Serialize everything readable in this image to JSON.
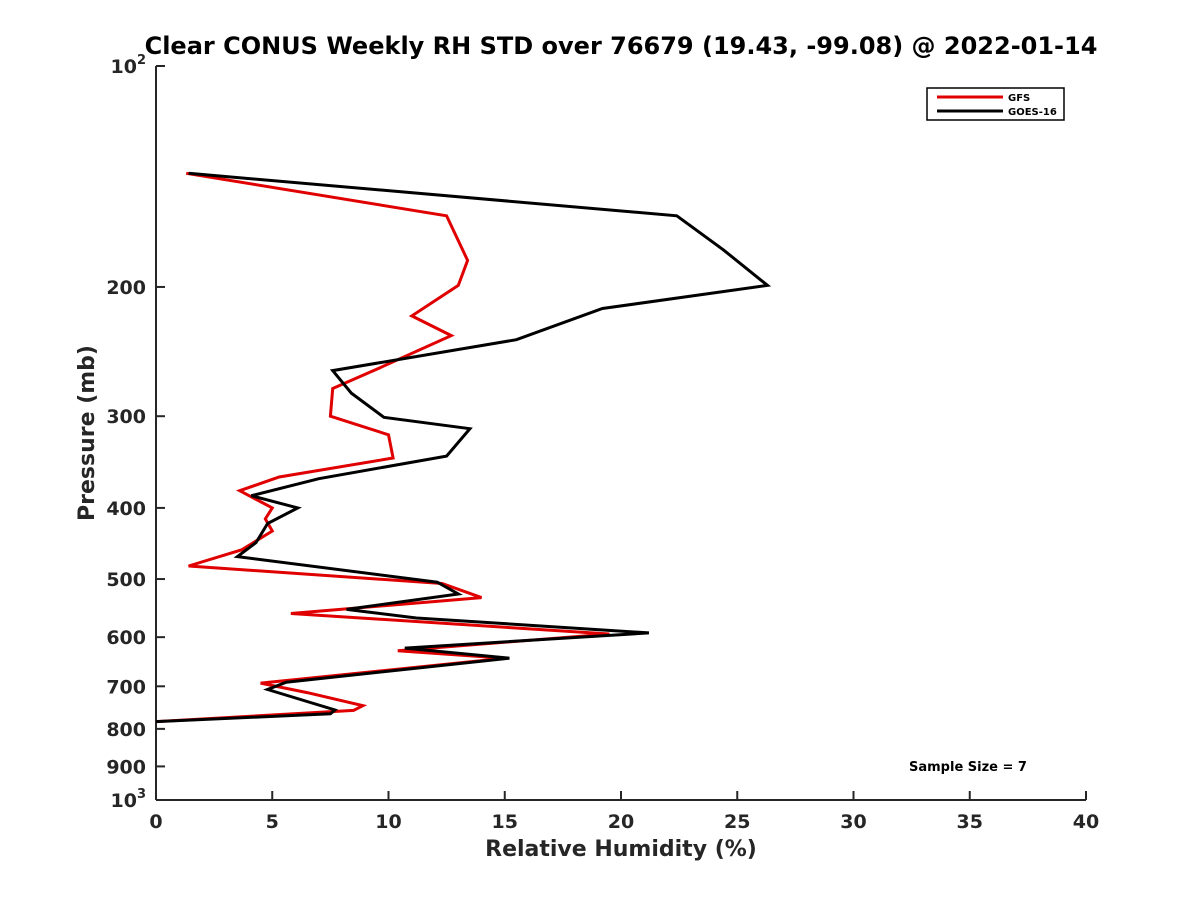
{
  "chart_data": {
    "type": "line",
    "title": "Clear CONUS Weekly RH STD over 76679 (19.43, -99.08) @ 2022-01-14",
    "xlabel": "Relative Humidity (%)",
    "ylabel": "Pressure (mb)",
    "xlim": [
      0,
      40
    ],
    "ylim": [
      100,
      1000
    ],
    "yscale": "log",
    "y_reversed": true,
    "grid": false,
    "legend_position": "top-right",
    "x_ticks": [
      "0",
      "5",
      "10",
      "15",
      "20",
      "25",
      "30",
      "35",
      "40"
    ],
    "y_ticks": [
      {
        "value": 100,
        "base": "10",
        "exp": "2"
      },
      {
        "value": 200,
        "label": "200"
      },
      {
        "value": 300,
        "label": "300"
      },
      {
        "value": 400,
        "label": "400"
      },
      {
        "value": 500,
        "label": "500"
      },
      {
        "value": 600,
        "label": "600"
      },
      {
        "value": 700,
        "label": "700"
      },
      {
        "value": 800,
        "label": "800"
      },
      {
        "value": 900,
        "label": "900"
      },
      {
        "value": 1000,
        "base": "10",
        "exp": "3"
      }
    ],
    "annotation": "Sample Size = 7",
    "series": [
      {
        "name": "GFS",
        "color": "#e00000",
        "points": [
          [
            1.3,
            140
          ],
          [
            12.5,
            160
          ],
          [
            13.4,
            184
          ],
          [
            13.0,
            199
          ],
          [
            11.0,
            219
          ],
          [
            12.7,
            233
          ],
          [
            9.6,
            258
          ],
          [
            7.6,
            275
          ],
          [
            7.5,
            300
          ],
          [
            10.0,
            318
          ],
          [
            10.2,
            342
          ],
          [
            5.3,
            363
          ],
          [
            3.6,
            379
          ],
          [
            5.0,
            400
          ],
          [
            4.7,
            414
          ],
          [
            5.0,
            430
          ],
          [
            3.7,
            456
          ],
          [
            1.4,
            480
          ],
          [
            12.3,
            507
          ],
          [
            14.0,
            530
          ],
          [
            5.8,
            557
          ],
          [
            19.5,
            594
          ],
          [
            10.4,
            626
          ],
          [
            15.0,
            641
          ],
          [
            4.5,
            693
          ],
          [
            6.5,
            714
          ],
          [
            8.9,
            744
          ],
          [
            8.5,
            755
          ],
          [
            0,
            782
          ]
        ]
      },
      {
        "name": "GOES-16",
        "color": "#000000",
        "points": [
          [
            1.4,
            140
          ],
          [
            22.4,
            160
          ],
          [
            24.4,
            178
          ],
          [
            26.3,
            199
          ],
          [
            19.2,
            214
          ],
          [
            15.5,
            236
          ],
          [
            7.6,
            260
          ],
          [
            8.4,
            279
          ],
          [
            9.8,
            301
          ],
          [
            13.5,
            312
          ],
          [
            12.5,
            340
          ],
          [
            7.0,
            365
          ],
          [
            4.1,
            385
          ],
          [
            6.1,
            400
          ],
          [
            4.8,
            420
          ],
          [
            4.3,
            446
          ],
          [
            3.5,
            466
          ],
          [
            12.1,
            505
          ],
          [
            13.0,
            524
          ],
          [
            8.2,
            550
          ],
          [
            11.2,
            565
          ],
          [
            21.2,
            592
          ],
          [
            10.7,
            621
          ],
          [
            15.2,
            641
          ],
          [
            5.6,
            691
          ],
          [
            4.8,
            707
          ],
          [
            7.7,
            754
          ],
          [
            7.5,
            763
          ],
          [
            0,
            782
          ]
        ]
      }
    ]
  }
}
